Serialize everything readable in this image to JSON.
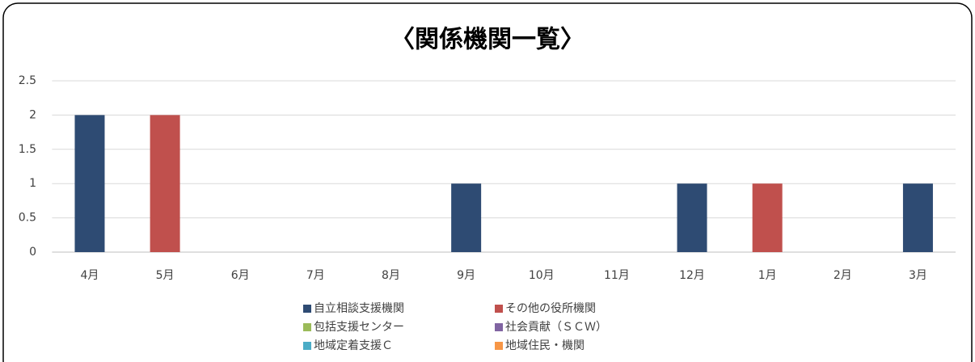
{
  "chart_data": {
    "type": "stacked_bar",
    "title": "〈関係機関一覧〉",
    "categories": [
      "4月",
      "5月",
      "6月",
      "7月",
      "8月",
      "9月",
      "10月",
      "11月",
      "12月",
      "1月",
      "2月",
      "3月"
    ],
    "series": [
      {
        "name": "自立相談支援機関",
        "color": "#2e4b73",
        "values": [
          2,
          0,
          0,
          0,
          0,
          1,
          0,
          0,
          1,
          0,
          0,
          1
        ]
      },
      {
        "name": "その他の役所機関",
        "color": "#c0504d",
        "values": [
          0,
          2,
          0,
          0,
          0,
          0,
          0,
          0,
          0,
          1,
          0,
          0
        ]
      },
      {
        "name": "包括支援センター",
        "color": "#9bbb59",
        "values": [
          0,
          0,
          0,
          0,
          0,
          0,
          0,
          0,
          0,
          0,
          0,
          0
        ]
      },
      {
        "name": "社会貢献（ＳＣＷ）",
        "color": "#8064a2",
        "values": [
          0,
          0,
          0,
          0,
          0,
          0,
          0,
          0,
          0,
          0,
          0,
          0
        ]
      },
      {
        "name": "地域定着支援Ｃ",
        "color": "#4bacc6",
        "values": [
          0,
          0,
          0,
          0,
          0,
          0,
          0,
          0,
          0,
          0,
          0,
          0
        ]
      },
      {
        "name": "地域住民・機関",
        "color": "#f79646",
        "values": [
          0,
          0,
          0,
          0,
          0,
          0,
          0,
          0,
          0,
          0,
          0,
          0
        ]
      }
    ],
    "ylim": [
      0,
      2.5
    ],
    "yticks": [
      0,
      0.5,
      1,
      1.5,
      2,
      2.5
    ],
    "grid": true
  }
}
